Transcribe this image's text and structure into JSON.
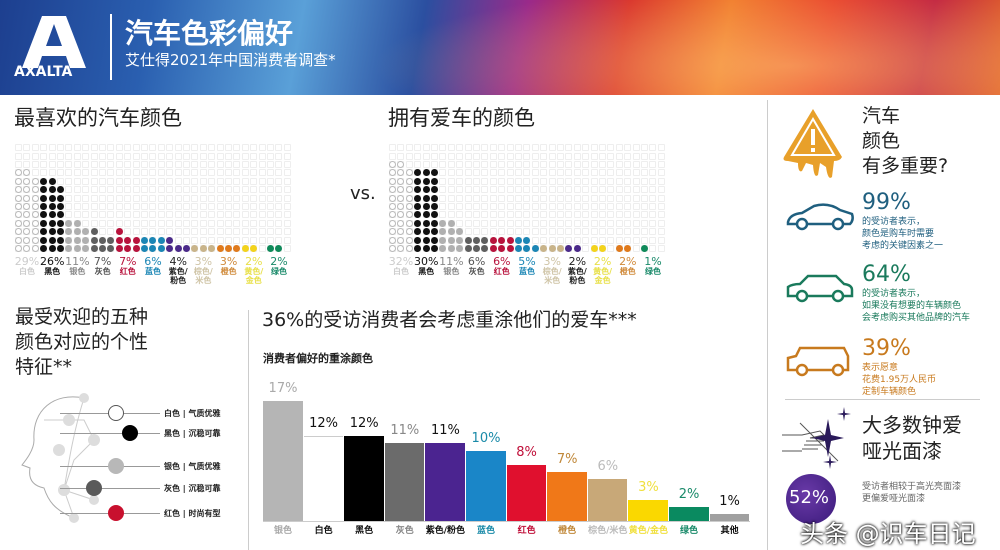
{
  "header": {
    "brand": "AXALTA",
    "title": "汽车色彩偏好",
    "subtitle": "艾仕得2021年中国消费者调查*"
  },
  "favorite": {
    "title": "最喜欢的汽车颜色"
  },
  "owned": {
    "title": "拥有爱车的颜色"
  },
  "vs_label": "vs.",
  "traits": {
    "title_lines": [
      "最受欢迎的五种",
      "颜色对应的个性",
      "特征**"
    ],
    "items": [
      {
        "label": "白色 | 气质优雅",
        "color": "#ffffff"
      },
      {
        "label": "黑色 | 沉稳可靠",
        "color": "#000000"
      },
      {
        "label": "银色 | 气质优雅",
        "color": "#b8b8b8"
      },
      {
        "label": "灰色 | 沉稳可靠",
        "color": "#5a5a5a"
      },
      {
        "label": "红色 | 时尚有型",
        "color": "#c8102e"
      }
    ]
  },
  "repaint": {
    "title": "36%的受访消费者会考虑重涂他们的爱车***",
    "chart_title": "消费者偏好的重涂颜色"
  },
  "importance": {
    "title_lines": [
      "汽车",
      "颜色",
      "有多重要?"
    ],
    "stats": [
      {
        "value": "99%",
        "lines": [
          "的受访者表示，",
          "颜色是购车时需要",
          "考虑的关键因素之一"
        ],
        "color": "#1f5f7f",
        "icon": "sports-car-icon"
      },
      {
        "value": "64%",
        "lines": [
          "的受访者表示，",
          "如果没有想要的车辆颜色",
          "会考虑购买其他品牌的汽车"
        ],
        "color": "#1a7a5c",
        "icon": "sedan-icon"
      },
      {
        "value": "39%",
        "lines": [
          "表示愿意",
          "花费1.95万人民币",
          "定制车辆颜色"
        ],
        "color": "#c87a1e",
        "icon": "suv-icon"
      }
    ],
    "matte_lines": [
      "大多数钟爱",
      "哑光面漆"
    ],
    "matte_pct": "52%",
    "matte_desc": [
      "受访者相较于高光亮面漆",
      "更偏爱哑光面漆"
    ]
  },
  "watermark": "头条 @识车日记",
  "chart_data": [
    {
      "type": "dot-matrix",
      "title": "最喜欢的汽车颜色",
      "unit": "%",
      "categories": [
        "白色",
        "黑色",
        "银色",
        "灰色",
        "红色",
        "蓝色",
        "紫色/粉色",
        "棕色/米色",
        "橙色",
        "黄色/金色",
        "绿色"
      ],
      "values": [
        29,
        26,
        11,
        7,
        7,
        6,
        4,
        3,
        3,
        2,
        2
      ],
      "colors": [
        "#ffffff",
        "#111111",
        "#b0b0b0",
        "#5e5e5e",
        "#b8123c",
        "#1b86b5",
        "#4b2a8a",
        "#c9b48a",
        "#e07a1c",
        "#f3d31b",
        "#0f8a5a"
      ],
      "label_colors": [
        "#cccccc",
        "#111111",
        "#888888",
        "#555555",
        "#b8123c",
        "#1b86b5",
        "#222222",
        "#cfc4a6",
        "#d08a3a",
        "#e8e04a",
        "#1a8a6a"
      ]
    },
    {
      "type": "dot-matrix",
      "title": "拥有爱车的颜色",
      "unit": "%",
      "categories": [
        "白色",
        "黑色",
        "银色",
        "灰色",
        "红色",
        "蓝色",
        "棕色/米色",
        "紫色/粉色",
        "黄色/金色",
        "橙色",
        "绿色"
      ],
      "values": [
        32,
        30,
        11,
        6,
        6,
        5,
        3,
        2,
        2,
        2,
        1
      ],
      "colors": [
        "#ffffff",
        "#111111",
        "#b0b0b0",
        "#5e5e5e",
        "#b8123c",
        "#1b86b5",
        "#c9b48a",
        "#4b2a8a",
        "#f3d31b",
        "#e07a1c",
        "#0f8a5a"
      ],
      "label_colors": [
        "#cccccc",
        "#111111",
        "#888888",
        "#555555",
        "#b8123c",
        "#1b86b5",
        "#cfc4a6",
        "#222222",
        "#e8e04a",
        "#d08a3a",
        "#1a8a6a"
      ]
    },
    {
      "type": "bar",
      "title": "消费者偏好的重涂颜色",
      "unit": "%",
      "categories": [
        "银色",
        "白色",
        "黑色",
        "灰色",
        "紫色/粉色",
        "蓝色",
        "红色",
        "橙色",
        "棕色/米色",
        "黄色/金色",
        "绿色",
        "其他"
      ],
      "values": [
        17,
        12,
        12,
        11,
        11,
        10,
        8,
        7,
        6,
        3,
        2,
        1
      ],
      "colors": [
        "#b5b5b5",
        "#ffffff",
        "#000000",
        "#6b6b6b",
        "#4b2490",
        "#1a86c8",
        "#e0102e",
        "#f07818",
        "#c8a878",
        "#fad800",
        "#0a8a60",
        "#a0a0a0"
      ],
      "label_colors": [
        "#aaaaaa",
        "#111111",
        "#111111",
        "#888888",
        "#111111",
        "#1a8aa8",
        "#c0103a",
        "#c0883a",
        "#bbbbbb",
        "#f0e040",
        "#1a8a6a",
        "#111111"
      ],
      "ylim": [
        0,
        17
      ]
    }
  ]
}
